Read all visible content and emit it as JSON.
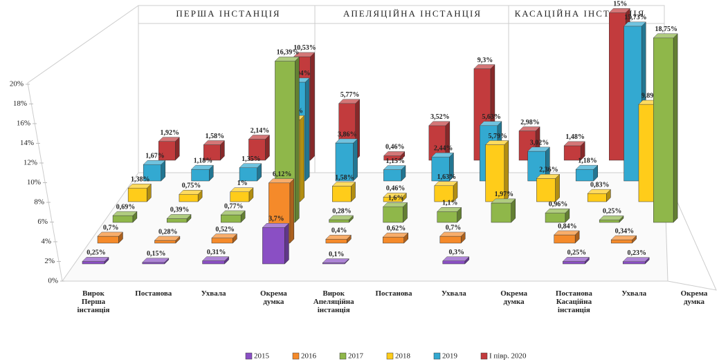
{
  "chart_data": {
    "type": "bar3d",
    "sections": [
      "ПЕРША ІНСТАНЦІЯ",
      "АПЕЛЯЦІЙНА ІНСТАНЦІЯ",
      "КАСАЦІЙНА ІНСТАНЦІЯ"
    ],
    "categories": [
      "Вирок Перша інстанція",
      "Постанова",
      "Ухвала",
      "Окрема думка",
      "Вирок Апеляційна інстанція",
      "Постанова",
      "Ухвала",
      "Окрема думка",
      "Постанова Касаційна інстанція",
      "Ухвала",
      "Окрема думка"
    ],
    "series": [
      {
        "name": "2015",
        "color": "#8a4fc4",
        "values": [
          0.25,
          0.15,
          0.31,
          3.7,
          0.1,
          null,
          0.3,
          null,
          0.25,
          0.23,
          null
        ],
        "value_labels": [
          "0,25%",
          "0,15%",
          "0,31%",
          "3,7%",
          "0,1%",
          null,
          "0,3%",
          null,
          "0,25%",
          "0,23%",
          null
        ]
      },
      {
        "name": "2016",
        "color": "#f58a2a",
        "values": [
          0.7,
          0.28,
          0.52,
          6.12,
          0.4,
          0.62,
          0.7,
          null,
          0.84,
          0.34,
          null
        ],
        "value_labels": [
          "0,7%",
          "0,28%",
          "0,52%",
          "6,12%",
          "0,4%",
          "0,62%",
          "0,7%",
          null,
          "0,84%",
          "0,34%",
          null
        ]
      },
      {
        "name": "2017",
        "color": "#8fb74a",
        "values": [
          0.69,
          0.39,
          0.77,
          16.39,
          0.28,
          1.6,
          1.1,
          1.97,
          0.96,
          0.25,
          18.75
        ],
        "value_labels": [
          "0,69%",
          "0,39%",
          "0,77%",
          "16,39%",
          "0,28%",
          "1,6%",
          "1,1%",
          "1,97%",
          "0,96%",
          "0,25%",
          "18,75%"
        ]
      },
      {
        "name": "2018",
        "color": "#ffcc1a",
        "values": [
          1.38,
          0.75,
          1,
          8.33,
          1.58,
          0.46,
          1.63,
          5.79,
          2.36,
          0.83,
          9.89
        ],
        "value_labels": [
          "1,38%",
          "0,75%",
          "1%",
          "8,33%",
          "1,58%",
          "0,46%",
          "1,63%",
          "5,79%",
          "2,36%",
          "0,83%",
          "9,89%"
        ]
      },
      {
        "name": "2019",
        "color": "#33a9d1",
        "values": [
          1.67,
          1.18,
          1.35,
          10.04,
          3.86,
          1.15,
          2.44,
          5.63,
          3.02,
          1.18,
          15.73
        ],
        "value_labels": [
          "1,67%",
          "1,18%",
          "1,35%",
          "10,04%",
          "3,86%",
          "1,15%",
          "2,44%",
          "5,63%",
          "3,02%",
          "1,18%",
          "15,73%"
        ]
      },
      {
        "name": "І півр. 2020",
        "color": "#c23b3d",
        "values": [
          1.92,
          1.58,
          2.14,
          10.53,
          5.77,
          0.46,
          3.52,
          9.3,
          2.98,
          1.48,
          15
        ],
        "value_labels": [
          "1,92%",
          "1,58%",
          "2,14%",
          "10,53%",
          "5,77%",
          "0,46%",
          "3,52%",
          "9,3%",
          "2,98%",
          "1,48%",
          "15%"
        ]
      }
    ],
    "ylim": [
      0,
      20
    ],
    "yticks": [
      {
        "value": 0,
        "label": "0%"
      },
      {
        "value": 2,
        "label": "2%"
      },
      {
        "value": 4,
        "label": "4%"
      },
      {
        "value": 6,
        "label": "6%"
      },
      {
        "value": 8,
        "label": "8%"
      },
      {
        "value": 10,
        "label": "10%"
      },
      {
        "value": 12,
        "label": "12%"
      },
      {
        "value": 14,
        "label": "14%"
      },
      {
        "value": 16,
        "label": "16%"
      },
      {
        "value": 18,
        "label": "18%"
      },
      {
        "value": 20,
        "label": "20%"
      }
    ],
    "legend": "bottom"
  }
}
